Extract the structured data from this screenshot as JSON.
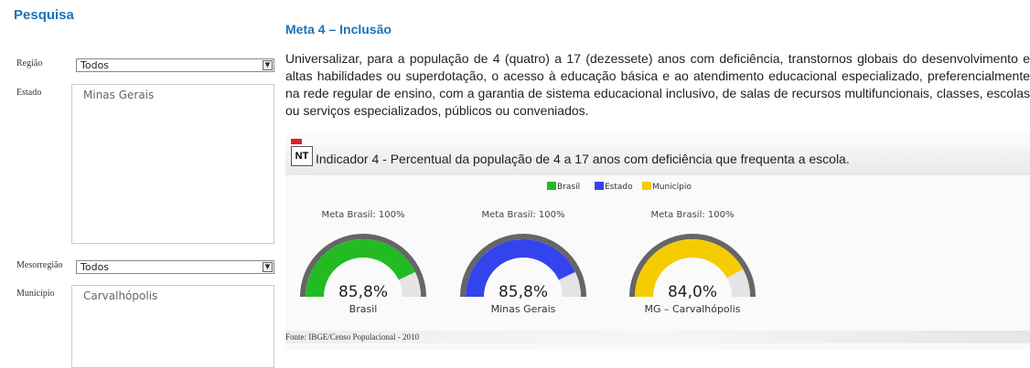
{
  "sidebar": {
    "title": "Pesquisa",
    "fields": [
      {
        "label": "Região",
        "value": "Todos"
      },
      {
        "label": "Estado",
        "value": "Minas Gerais"
      },
      {
        "label": "Mesorregião",
        "value": "Todos"
      },
      {
        "label": "Município",
        "value": "Carvalhópolis"
      }
    ]
  },
  "main": {
    "title": "Meta 4 – Inclusão",
    "text": "Universalizar, para a população de 4 (quatro) a 17 (dezessete) anos com deficiência, transtornos globais do desenvolvimento e altas habilidades ou superdotação, o acesso à educação básica e ao atendimento educacional especializado, preferencialmente na rede regular de ensino, com a garantia de sistema educacional inclusivo, de salas de recursos multifuncionais, classes, escolas ou serviços especializados, públicos ou conveniados.",
    "icon_label": "NT",
    "source": "Fonte: IBGE/Censo Populacional - 2010"
  },
  "chart_data": {
    "type": "gauge",
    "title": "Indicador 4 - Percentual da população de 4 a 17 anos com deficiência que frequenta a escola.",
    "legend": [
      {
        "name": "Brasil",
        "color": "#22bb22"
      },
      {
        "name": "Estado",
        "color": "#3344ee"
      },
      {
        "name": "Município",
        "color": "#f5cc00"
      }
    ],
    "categories": [
      "Brasil",
      "Minas Gerais",
      "MG – Carvalhópolis"
    ],
    "target_labels": [
      "Meta Brasil: 100%",
      "Meta Brasil: 100%",
      "Meta Brasil: 100%"
    ],
    "values": [
      85.8,
      85.8,
      84.0
    ],
    "value_labels": [
      "85,8%",
      "85,8%",
      "84,0%"
    ],
    "colors": [
      "#22bb22",
      "#3344ee",
      "#f5cc00"
    ],
    "ylim": [
      0,
      100
    ]
  }
}
